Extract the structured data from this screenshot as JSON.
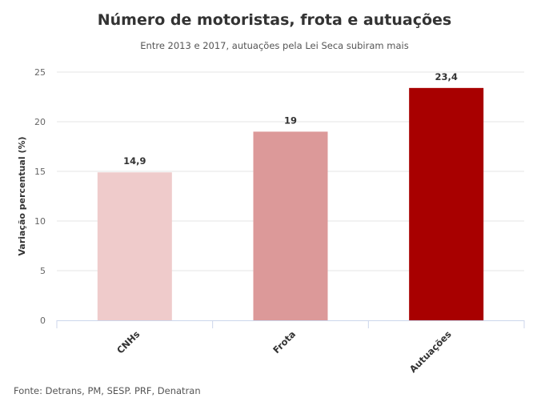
{
  "chart_data": {
    "type": "bar",
    "title": "Número de motoristas, frota e autuações",
    "subtitle": "Entre 2013 e 2017, autuações pela Lei Seca subiram mais",
    "categories": [
      "CNHs",
      "Frota",
      "Autuações"
    ],
    "values": [
      14.9,
      19,
      23.4
    ],
    "data_labels": [
      "14,9",
      "19",
      "23,4"
    ],
    "colors": [
      "#efcbcb",
      "#dc9999",
      "#a80000"
    ],
    "xlabel": "",
    "ylabel": "Variação percentual (%)",
    "ylim": [
      0,
      25
    ],
    "yticks": [
      0,
      5,
      10,
      15,
      20,
      25
    ],
    "grid": true,
    "legend": "none"
  },
  "source": "Fonte: Detrans, PM, SESP. PRF, Denatran"
}
